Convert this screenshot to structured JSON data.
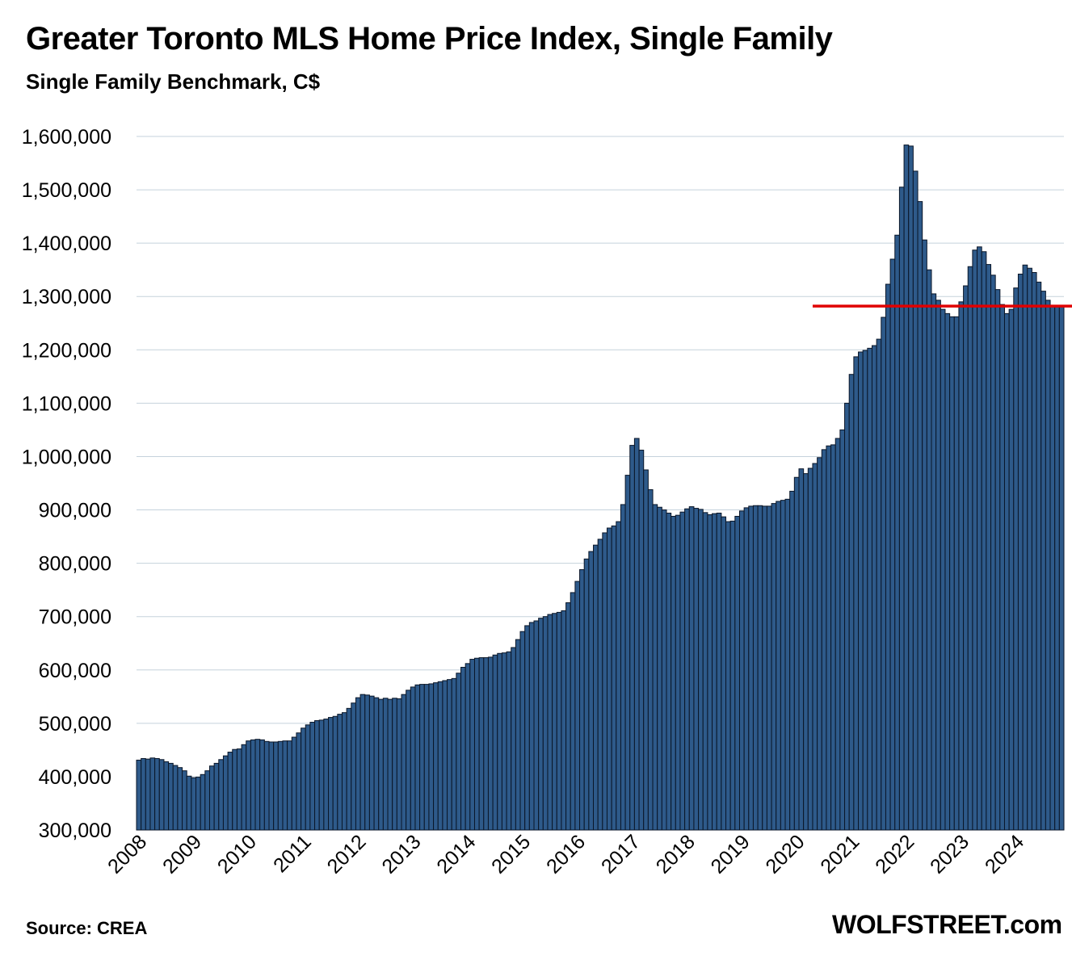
{
  "header": {
    "title": "Greater Toronto MLS Home Price Index, Single Family",
    "subtitle": "Single Family Benchmark, C$"
  },
  "footer": {
    "source": "Source: CREA",
    "brand": "WOLFSTREET.com"
  },
  "colors": {
    "bar_fill": "#2E5A8A",
    "bar_stroke": "#0A1628",
    "reference_line": "#E00000",
    "grid": "#C5D2DC"
  },
  "chart_data": {
    "type": "bar",
    "title": "Greater Toronto MLS Home Price Index, Single Family",
    "subtitle": "Single Family Benchmark, C$",
    "ylim": [
      300000,
      1600000
    ],
    "y_ticks": [
      "300,000",
      "400,000",
      "500,000",
      "600,000",
      "700,000",
      "800,000",
      "900,000",
      "1,000,000",
      "1,100,000",
      "1,200,000",
      "1,300,000",
      "1,400,000",
      "1,500,000",
      "1,600,000"
    ],
    "x_tick_labels": [
      "2008",
      "2009",
      "2010",
      "2011",
      "2012",
      "2013",
      "2014",
      "2015",
      "2016",
      "2017",
      "2018",
      "2019",
      "2020",
      "2021",
      "2022",
      "2023",
      "2024"
    ],
    "grid": true,
    "frequency": "monthly",
    "start": "2008-01",
    "end": "2024-11",
    "values": [
      431000,
      434000,
      433000,
      435000,
      434000,
      432000,
      428000,
      425000,
      421000,
      417000,
      411000,
      401000,
      398000,
      399000,
      404000,
      411000,
      420000,
      425000,
      432000,
      439000,
      446000,
      451000,
      452000,
      460000,
      467000,
      469000,
      470000,
      469000,
      466000,
      465000,
      465000,
      466000,
      467000,
      467000,
      474000,
      482000,
      491000,
      497000,
      502000,
      505000,
      506000,
      508000,
      511000,
      513000,
      517000,
      520000,
      528000,
      538000,
      548000,
      554000,
      553000,
      551000,
      548000,
      545000,
      547000,
      545000,
      547000,
      546000,
      554000,
      562000,
      568000,
      572000,
      573000,
      573000,
      574000,
      576000,
      578000,
      580000,
      582000,
      584000,
      594000,
      605000,
      612000,
      620000,
      622000,
      623000,
      623000,
      624000,
      628000,
      631000,
      632000,
      634000,
      642000,
      657000,
      672000,
      683000,
      689000,
      692000,
      697000,
      700000,
      704000,
      706000,
      708000,
      711000,
      726000,
      745000,
      766000,
      788000,
      808000,
      822000,
      834000,
      845000,
      857000,
      866000,
      870000,
      878000,
      910000,
      965000,
      1021000,
      1034000,
      1012000,
      975000,
      938000,
      910000,
      905000,
      900000,
      894000,
      888000,
      890000,
      896000,
      902000,
      906000,
      903000,
      901000,
      895000,
      891000,
      893000,
      894000,
      887000,
      878000,
      879000,
      888000,
      898000,
      904000,
      907000,
      908000,
      908000,
      907000,
      907000,
      912000,
      916000,
      918000,
      920000,
      935000,
      961000,
      977000,
      968000,
      978000,
      987000,
      998000,
      1013000,
      1020000,
      1022000,
      1034000,
      1050000,
      1100000,
      1154000,
      1187000,
      1196000,
      1199000,
      1203000,
      1208000,
      1220000,
      1261000,
      1323000,
      1370000,
      1415000,
      1505000,
      1584000,
      1582000,
      1535000,
      1478000,
      1406000,
      1350000,
      1305000,
      1293000,
      1276000,
      1268000,
      1262000,
      1262000,
      1290000,
      1320000,
      1356000,
      1387000,
      1393000,
      1384000,
      1360000,
      1340000,
      1313000,
      1285000,
      1268000,
      1276000,
      1316000,
      1342000,
      1359000,
      1353000,
      1345000,
      1327000,
      1310000,
      1293000,
      1282000,
      1281000,
      1283000
    ],
    "reference_line": {
      "value": 1282000,
      "start": "2020-05"
    }
  }
}
